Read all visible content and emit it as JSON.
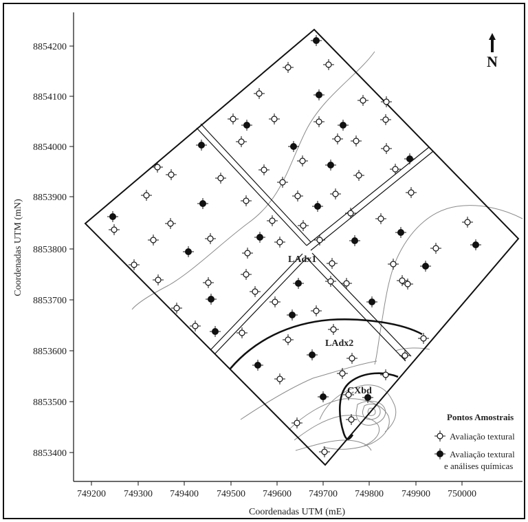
{
  "map": {
    "north_letter": "N",
    "x_axis_title": "Coordenadas UTM (mE)",
    "y_axis_title": "Coordenadas UTM (mN)",
    "x_ticks": [
      "749200",
      "749300",
      "749400",
      "749500",
      "749600",
      "749700",
      "749800",
      "749900",
      "750000"
    ],
    "y_ticks": [
      "8854200",
      "8854100",
      "8854000",
      "8853900",
      "8853800",
      "8853700",
      "8853600",
      "8853500",
      "8853400"
    ],
    "regions": {
      "ladx1": "LAdx1",
      "ladx2": "LAdx2",
      "cxbd": "CXbd"
    },
    "legend": {
      "title": "Pontos Amostrais",
      "open_label": "Avaliação textural",
      "filled_label_line1": "Avaliação textural",
      "filled_label_line2": "e análises químicas"
    },
    "colors": {
      "line": "#111111",
      "contour": "#8a8a8a",
      "open_fill": "#ffffff",
      "filled": "#111111"
    },
    "point_counts": {
      "open": 71,
      "filled": 26
    }
  }
}
